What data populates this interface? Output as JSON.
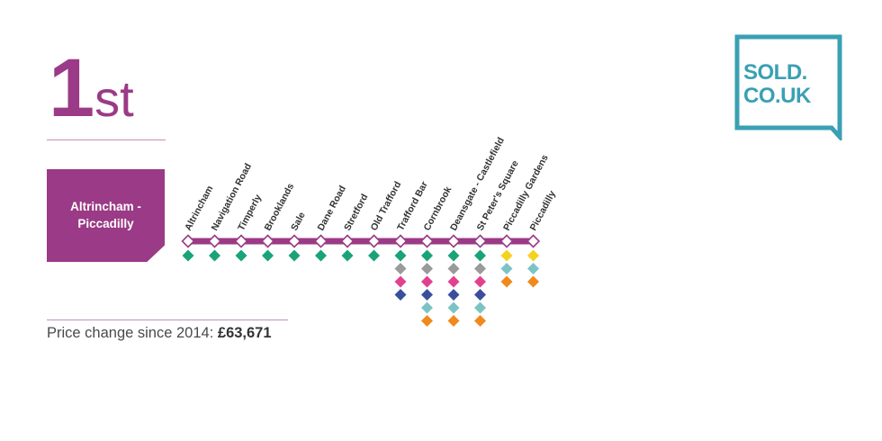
{
  "rank": {
    "number": "1",
    "suffix": "st"
  },
  "route": {
    "line1": "Altrincham -",
    "line2": "Piccadilly"
  },
  "price": {
    "label": "Price change since 2014:",
    "value": "£63,671"
  },
  "logo": {
    "line1": "SOLD.",
    "line2": "CO.UK"
  },
  "colors": {
    "line": "#9b3a86",
    "green": "#1aa37a",
    "grey": "#9a9a9a",
    "pink": "#e2418f",
    "navy": "#3a4f9c",
    "teal": "#7cc4c4",
    "orange": "#f08a1c",
    "yellow": "#f6d21e",
    "logo": "#3aa0b4"
  },
  "stations": [
    {
      "name": "Altrincham",
      "lines": [
        "green"
      ]
    },
    {
      "name": "Navigation Road",
      "lines": [
        "green"
      ]
    },
    {
      "name": "Timperly",
      "lines": [
        "green"
      ]
    },
    {
      "name": "Brooklands",
      "lines": [
        "green"
      ]
    },
    {
      "name": "Sale",
      "lines": [
        "green"
      ]
    },
    {
      "name": "Dane Road",
      "lines": [
        "green"
      ]
    },
    {
      "name": "Stretford",
      "lines": [
        "green"
      ]
    },
    {
      "name": "Old Trafford",
      "lines": [
        "green"
      ]
    },
    {
      "name": "Trafford Bar",
      "lines": [
        "green",
        "grey",
        "pink",
        "navy"
      ]
    },
    {
      "name": "Cornbrook",
      "lines": [
        "green",
        "grey",
        "pink",
        "navy",
        "teal",
        "orange"
      ]
    },
    {
      "name": "Deansgate - Castlefield",
      "lines": [
        "green",
        "grey",
        "pink",
        "navy",
        "teal",
        "orange"
      ]
    },
    {
      "name": "St Peter's Square",
      "lines": [
        "green",
        "grey",
        "pink",
        "navy",
        "teal",
        "orange"
      ]
    },
    {
      "name": "Piccadilly Gardens",
      "lines": [
        "yellow",
        "teal",
        "orange"
      ]
    },
    {
      "name": "Piccadilly",
      "lines": [
        "yellow",
        "teal",
        "orange"
      ]
    }
  ]
}
